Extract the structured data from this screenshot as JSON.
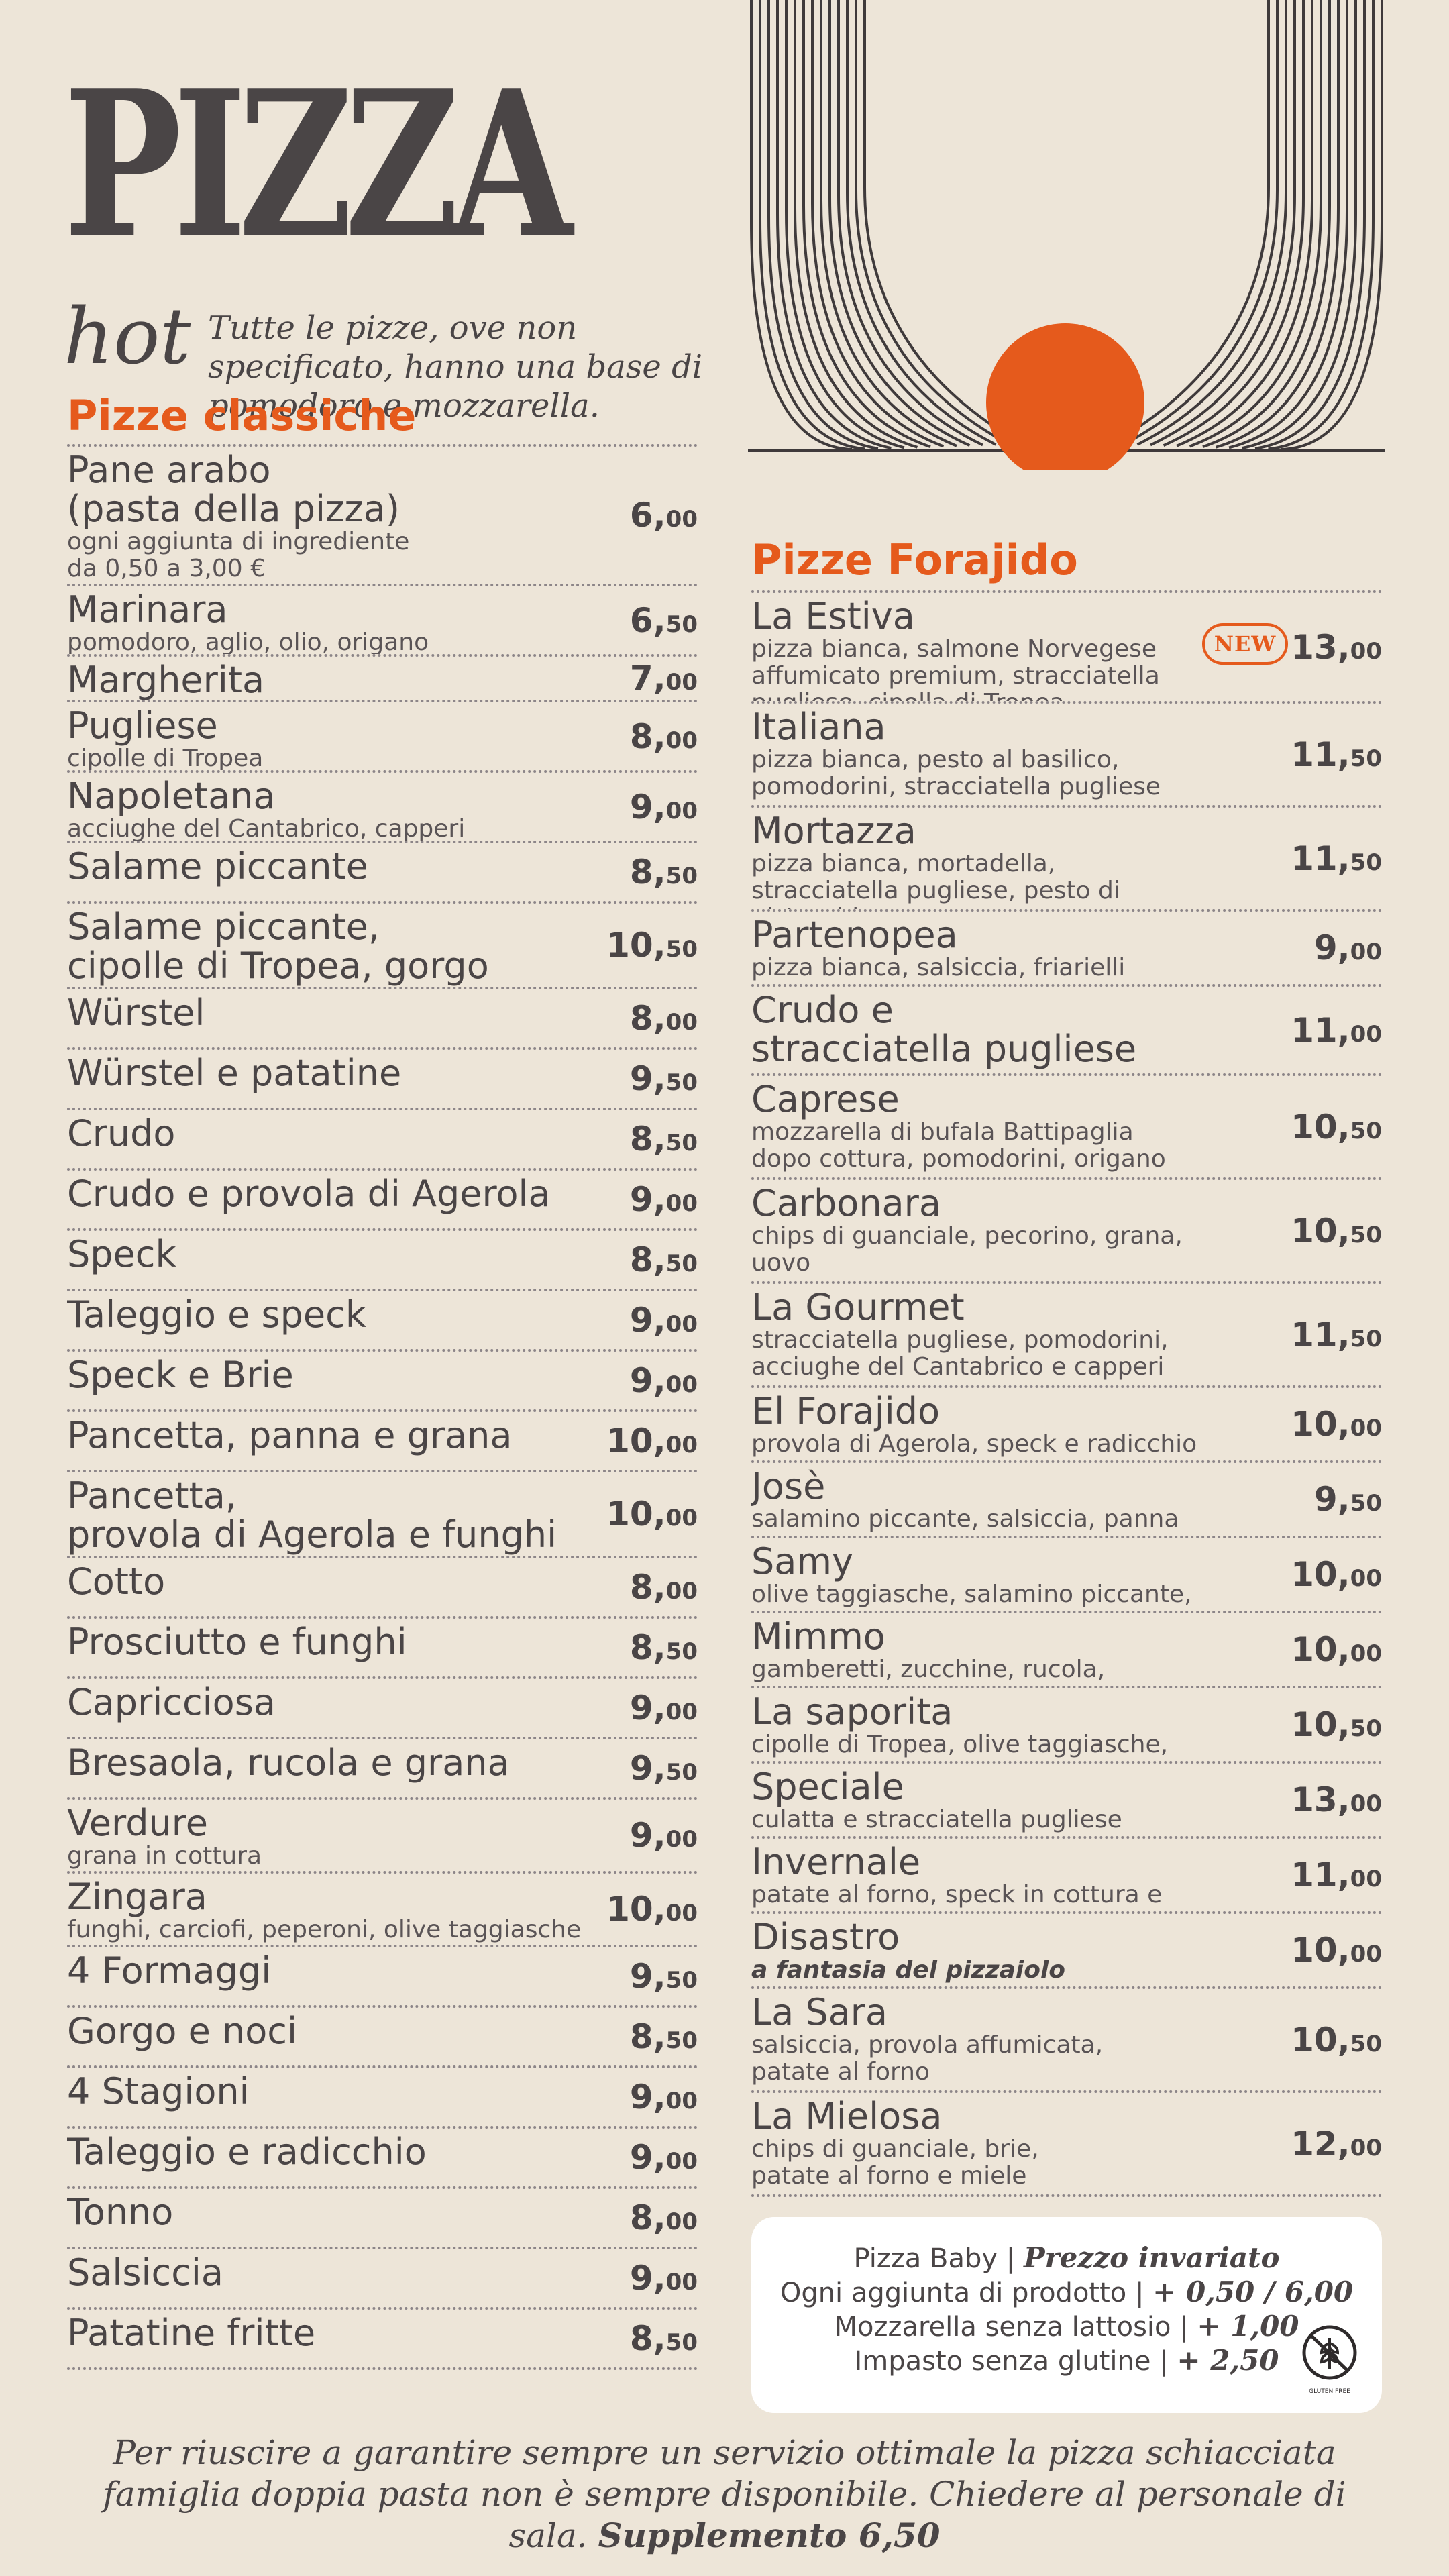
{
  "header": {
    "title": "PIZZA",
    "subtitle": "hot",
    "intro": "Tutte le pizze, ove non specificato, hanno una base di pomodoro e mozzarella."
  },
  "colors": {
    "accent": "#e55a1c",
    "text": "#4a4546",
    "background": "#ede5d8",
    "box": "#ffffff"
  },
  "classiche": {
    "title": "Pizze classiche",
    "items": [
      {
        "name": "Pane arabo\n(pasta della pizza)",
        "desc": "ogni aggiunta di ingrediente\nda 0,50 a 3,00 €",
        "price_int": "6,",
        "price_dec": "00"
      },
      {
        "name": "Marinara",
        "desc": "pomodoro, aglio, olio, origano",
        "price_int": "6,",
        "price_dec": "50"
      },
      {
        "name": "Margherita",
        "desc": "",
        "price_int": "7,",
        "price_dec": "00"
      },
      {
        "name": "Pugliese",
        "desc": "cipolle di Tropea",
        "price_int": "8,",
        "price_dec": "00"
      },
      {
        "name": "Napoletana",
        "desc": "acciughe del Cantabrico, capperi",
        "price_int": "9,",
        "price_dec": "00"
      },
      {
        "name": "Salame piccante",
        "desc": "",
        "price_int": "8,",
        "price_dec": "50"
      },
      {
        "name": "Salame piccante,\ncipolle di Tropea, gorgo",
        "desc": "",
        "price_int": "10,",
        "price_dec": "50"
      },
      {
        "name": "Würstel",
        "desc": "",
        "price_int": "8,",
        "price_dec": "00"
      },
      {
        "name": "Würstel e patatine",
        "desc": "",
        "price_int": "9,",
        "price_dec": "50"
      },
      {
        "name": "Crudo",
        "desc": "",
        "price_int": "8,",
        "price_dec": "50"
      },
      {
        "name": "Crudo e provola di Agerola",
        "desc": "",
        "price_int": "9,",
        "price_dec": "00"
      },
      {
        "name": "Speck",
        "desc": "",
        "price_int": "8,",
        "price_dec": "50"
      },
      {
        "name": "Taleggio e speck",
        "desc": "",
        "price_int": "9,",
        "price_dec": "00"
      },
      {
        "name": "Speck e Brie",
        "desc": "",
        "price_int": "9,",
        "price_dec": "00"
      },
      {
        "name": "Pancetta, panna e grana",
        "desc": "",
        "price_int": "10,",
        "price_dec": "00"
      },
      {
        "name": "Pancetta,\nprovola di Agerola e funghi",
        "desc": "",
        "price_int": "10,",
        "price_dec": "00"
      },
      {
        "name": "Cotto",
        "desc": "",
        "price_int": "8,",
        "price_dec": "00"
      },
      {
        "name": "Prosciutto e funghi",
        "desc": "",
        "price_int": "8,",
        "price_dec": "50"
      },
      {
        "name": "Capricciosa",
        "desc": "",
        "price_int": "9,",
        "price_dec": "00"
      },
      {
        "name": "Bresaola, rucola e grana",
        "desc": "",
        "price_int": "9,",
        "price_dec": "50"
      },
      {
        "name": "Verdure",
        "desc": "grana in cottura",
        "price_int": "9,",
        "price_dec": "00"
      },
      {
        "name": "Zingara",
        "desc": "funghi, carciofi, peperoni, olive taggiasche",
        "price_int": "10,",
        "price_dec": "00"
      },
      {
        "name": "4 Formaggi",
        "desc": "",
        "price_int": "9,",
        "price_dec": "50"
      },
      {
        "name": "Gorgo e noci",
        "desc": "",
        "price_int": "8,",
        "price_dec": "50"
      },
      {
        "name": "4 Stagioni",
        "desc": "",
        "price_int": "9,",
        "price_dec": "00"
      },
      {
        "name": "Taleggio e radicchio",
        "desc": "",
        "price_int": "9,",
        "price_dec": "00"
      },
      {
        "name": "Tonno",
        "desc": "",
        "price_int": "8,",
        "price_dec": "00"
      },
      {
        "name": "Salsiccia",
        "desc": "",
        "price_int": "9,",
        "price_dec": "00"
      },
      {
        "name": "Patatine fritte",
        "desc": "",
        "price_int": "8,",
        "price_dec": "50"
      }
    ]
  },
  "forajido": {
    "title": "Pizze Forajido",
    "badge_label": "NEW",
    "items": [
      {
        "name": "La Estiva",
        "desc": "pizza bianca, salmone Norvegese\naffumicato premium, stracciatella\npugliese, cipolla di Tropea",
        "price_int": "13,",
        "price_dec": "00",
        "badge": true
      },
      {
        "name": "Italiana",
        "desc": "pizza bianca, pesto al basilico,\npomodorini, stracciatella pugliese",
        "price_int": "11,",
        "price_dec": "50"
      },
      {
        "name": "Mortazza",
        "desc": "pizza bianca, mortadella,\nstracciatella pugliese, pesto di pistacchi",
        "price_int": "11,",
        "price_dec": "50"
      },
      {
        "name": "Partenopea",
        "desc": "pizza bianca, salsiccia, friarielli",
        "price_int": "9,",
        "price_dec": "00"
      },
      {
        "name": "Crudo e\nstracciatella pugliese",
        "desc": "",
        "price_int": "11,",
        "price_dec": "00"
      },
      {
        "name": "Caprese",
        "desc": "mozzarella di bufala Battipaglia\ndopo cottura, pomodorini, origano",
        "price_int": "10,",
        "price_dec": "50"
      },
      {
        "name": "Carbonara",
        "desc": "chips di guanciale, pecorino, grana, uovo",
        "price_int": "10,",
        "price_dec": "50"
      },
      {
        "name": "La Gourmet",
        "desc": "stracciatella pugliese, pomodorini,\nacciughe del Cantabrico e capperi",
        "price_int": "11,",
        "price_dec": "50"
      },
      {
        "name": "El Forajido",
        "desc": "provola di Agerola, speck e radicchio",
        "price_int": "10,",
        "price_dec": "00"
      },
      {
        "name": "Josè",
        "desc": "salamino piccante, salsiccia, panna",
        "price_int": "9,",
        "price_dec": "50"
      },
      {
        "name": "Samy",
        "desc": "olive taggiasche, salamino piccante, rucola",
        "price_int": "10,",
        "price_dec": "00"
      },
      {
        "name": "Mimmo",
        "desc": "gamberetti, zucchine, rucola, pomodorini",
        "price_int": "10,",
        "price_dec": "00"
      },
      {
        "name": "La saporita",
        "desc": "cipolle di Tropea, olive taggiasche, taleggio",
        "price_int": "10,",
        "price_dec": "50"
      },
      {
        "name": "Speciale",
        "desc": "culatta e stracciatella pugliese",
        "price_int": "13,",
        "price_dec": "00"
      },
      {
        "name": "Invernale",
        "desc": "patate al forno, speck in cottura e brie",
        "price_int": "11,",
        "price_dec": "00"
      },
      {
        "name": "Disastro",
        "desc": "a fantasia del pizzaiolo",
        "price_int": "10,",
        "price_dec": "00",
        "desc_bold": true
      },
      {
        "name": "La Sara",
        "desc": "salsiccia, provola affumicata,\npatate al forno",
        "price_int": "10,",
        "price_dec": "50"
      },
      {
        "name": "La Mielosa",
        "desc": "chips di guanciale, brie,\npatate al forno e miele",
        "price_int": "12,",
        "price_dec": "00"
      }
    ]
  },
  "info": {
    "lines": [
      {
        "text": "Pizza Baby | ",
        "emph": "Prezzo invariato"
      },
      {
        "text": "Ogni aggiunta di prodotto | ",
        "emph": "+ 0,50 / 6,00"
      },
      {
        "text": "Mozzarella senza lattosio | ",
        "emph": "+ 1,00"
      },
      {
        "text": "Impasto senza glutine | ",
        "emph": "+ 2,50"
      }
    ],
    "icon": "gluten-free-icon",
    "icon_label": "GLUTEN FREE"
  },
  "footer": {
    "text": "Per riuscire a garantire sempre un servizio ottimale la pizza schiacciata famiglia doppia pasta non è sempre disponibile. Chiedere al personale di sala.",
    "strong": "Supplemento 6,50"
  }
}
